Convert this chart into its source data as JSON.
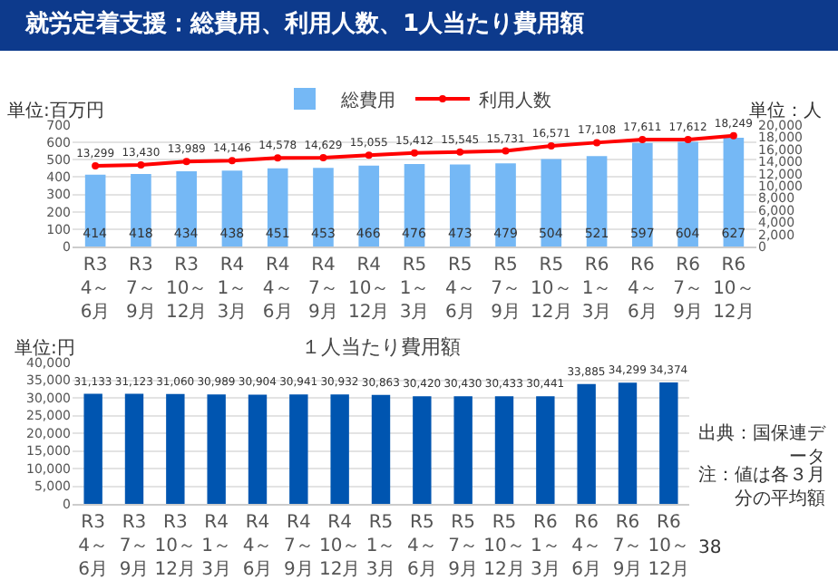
{
  "chart_data": [
    {
      "type": "bar",
      "title": "就労定着支援：総費用、利用人数、1人当たり費用額",
      "ylabel": "単位:百万円",
      "y2label": "単位：人",
      "categories": [
        "R3 4～6月",
        "R3 7～9月",
        "R3 10～12月",
        "R4 1～3月",
        "R4 4～6月",
        "R4 7～9月",
        "R4 10～12月",
        "R5 1～3月",
        "R5 4～6月",
        "R5 7～9月",
        "R5 10～12月",
        "R6 1～3月",
        "R6 4～6月",
        "R6 7～9月",
        "R6 10～12月"
      ],
      "series": [
        {
          "name": "総費用",
          "type": "bar",
          "color": "#75b8f5",
          "values": [
            414,
            418,
            434,
            438,
            451,
            453,
            466,
            476,
            473,
            479,
            504,
            521,
            597,
            604,
            627
          ],
          "value_labels": [
            "414",
            "418",
            "434",
            "438",
            "451",
            "453",
            "466",
            "476",
            "473",
            "479",
            "504",
            "521",
            "597",
            "604",
            "627"
          ]
        },
        {
          "name": "利用人数",
          "type": "line",
          "axis": "y2",
          "color": "#ff0000",
          "values": [
            13299,
            13430,
            13989,
            14146,
            14578,
            14629,
            15055,
            15412,
            15545,
            15731,
            16571,
            17108,
            17611,
            17612,
            18249
          ],
          "value_labels": [
            "13,299",
            "13,430",
            "13,989",
            "14,146",
            "14,578",
            "14,629",
            "15,055",
            "15,412",
            "15,545",
            "15,731",
            "16,571",
            "17,108",
            "17,611",
            "17,612",
            "18,249"
          ]
        }
      ],
      "ylim": [
        0,
        700
      ],
      "yticks": [
        0,
        100,
        200,
        300,
        400,
        500,
        600,
        700
      ],
      "y2lim": [
        0,
        20000
      ],
      "y2ticks": [
        0,
        {
          "value": 2000,
          "label": "2,000"
        },
        {
          "value": 4000,
          "label": "4,000"
        },
        {
          "value": 6000,
          "label": "6,000"
        },
        {
          "value": 8000,
          "label": "8,000"
        },
        {
          "value": 10000,
          "label": "10,000"
        },
        {
          "value": 12000,
          "label": "12,000"
        },
        {
          "value": 14000,
          "label": "14,000"
        },
        {
          "value": 16000,
          "label": "16,000"
        },
        {
          "value": 18000,
          "label": "18,000"
        },
        {
          "value": 20000,
          "label": "20,000"
        }
      ],
      "grid": "y",
      "legend": "top",
      "marker": "circle"
    },
    {
      "type": "bar",
      "title": "１人当たり費用額",
      "ylabel": "単位:円",
      "categories": [
        "R3 4～6月",
        "R3 7～9月",
        "R3 10～12月",
        "R4 1～3月",
        "R4 4～6月",
        "R4 7～9月",
        "R4 10～12月",
        "R5 1～3月",
        "R5 4～6月",
        "R5 7～9月",
        "R5 10～12月",
        "R6 1～3月",
        "R6 4～6月",
        "R6 7～9月",
        "R6 10～12月"
      ],
      "series": [
        {
          "color": "#0055b0",
          "values": [
            31133,
            31123,
            31060,
            30989,
            30904,
            30941,
            30932,
            30863,
            30420,
            30430,
            30433,
            30441,
            33885,
            34299,
            34374
          ],
          "value_labels": [
            "31,133",
            "31,123",
            "31,060",
            "30,989",
            "30,904",
            "30,941",
            "30,932",
            "30,863",
            "30,420",
            "30,430",
            "30,433",
            "30,441",
            "33,885",
            "34,299",
            "34,374"
          ]
        }
      ],
      "ylim": [
        0,
        40000
      ],
      "yticks": [
        0,
        {
          "value": 5000,
          "label": "5,000"
        },
        {
          "value": 10000,
          "label": "10,000"
        },
        {
          "value": 15000,
          "label": "15,000"
        },
        {
          "value": 20000,
          "label": "20,000"
        },
        {
          "value": 25000,
          "label": "25,000"
        },
        {
          "value": 30000,
          "label": "30,000"
        },
        {
          "value": 35000,
          "label": "35,000"
        },
        {
          "value": 40000,
          "label": "40,000"
        }
      ],
      "annotations": [
        "出典：国保連データ",
        "注：値は各３月分の平均額",
        "38"
      ],
      "grid": "y"
    }
  ]
}
